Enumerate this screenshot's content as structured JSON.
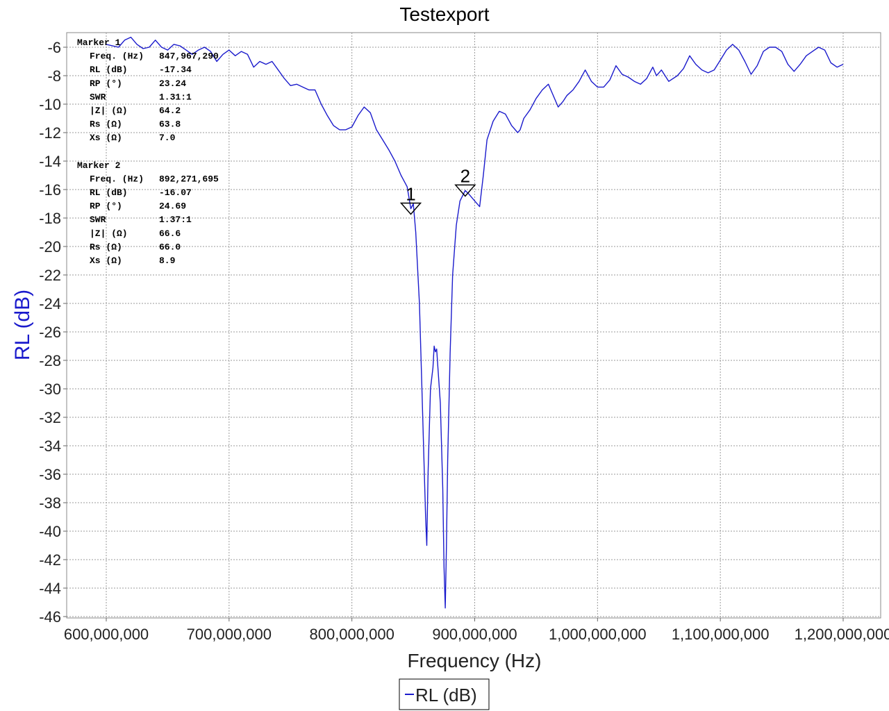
{
  "chart_data": {
    "type": "line",
    "title": "Testexport",
    "xlabel": "Frequency (Hz)",
    "ylabel": "RL (dB)",
    "xlim": [
      570000000,
      1230000000
    ],
    "ylim": [
      -46,
      -5
    ],
    "grid": true,
    "x_ticks": [
      600000000,
      700000000,
      800000000,
      900000000,
      1000000000,
      1100000000,
      1200000000
    ],
    "x_tick_labels": [
      "600,000,000",
      "700,000,000",
      "800,000,000",
      "900,000,000",
      "1,000,000,000",
      "1,100,000,000",
      "1,200,000,000"
    ],
    "y_ticks": [
      -6,
      -8,
      -10,
      -12,
      -14,
      -16,
      -18,
      -20,
      -22,
      -24,
      -26,
      -28,
      -30,
      -32,
      -34,
      -36,
      -38,
      -40,
      -42,
      -44,
      -46
    ],
    "y_tick_labels": [
      "-6",
      "-8",
      "-10",
      "-12",
      "-14",
      "-16",
      "-18",
      "-20",
      "-22",
      "-24",
      "-26",
      "-28",
      "-30",
      "-32",
      "-34",
      "-36",
      "-38",
      "-40",
      "-42",
      "-44",
      "-46"
    ],
    "legend": {
      "position": "bottom-center",
      "entries": [
        "RL (dB)"
      ]
    },
    "series": [
      {
        "name": "RL (dB)",
        "color": "#1a1acc",
        "x": [
          600000000,
          610000000,
          615000000,
          620000000,
          625000000,
          630000000,
          635000000,
          640000000,
          645000000,
          650000000,
          655000000,
          660000000,
          665000000,
          670000000,
          675000000,
          680000000,
          685000000,
          690000000,
          695000000,
          700000000,
          705000000,
          710000000,
          715000000,
          720000000,
          725000000,
          730000000,
          735000000,
          740000000,
          745000000,
          750000000,
          755000000,
          760000000,
          765000000,
          770000000,
          775000000,
          780000000,
          785000000,
          790000000,
          795000000,
          800000000,
          805000000,
          810000000,
          815000000,
          820000000,
          825000000,
          830000000,
          835000000,
          840000000,
          845000000,
          847967290,
          850000000,
          852000000,
          855000000,
          857000000,
          859000000,
          860000000,
          861000000,
          862000000,
          864000000,
          866000000,
          867000000,
          868000000,
          869000000,
          870000000,
          872000000,
          874000000,
          875000000,
          876000000,
          877000000,
          878000000,
          880000000,
          882000000,
          885000000,
          888000000,
          892271695,
          895000000,
          900000000,
          904000000,
          907000000,
          910000000,
          915000000,
          920000000,
          925000000,
          930000000,
          935000000,
          937000000,
          940000000,
          945000000,
          950000000,
          955000000,
          960000000,
          963000000,
          968000000,
          972000000,
          975000000,
          980000000,
          985000000,
          990000000,
          995000000,
          1000000000,
          1005000000,
          1010000000,
          1015000000,
          1020000000,
          1025000000,
          1030000000,
          1035000000,
          1040000000,
          1045000000,
          1048000000,
          1052000000,
          1058000000,
          1065000000,
          1070000000,
          1075000000,
          1080000000,
          1085000000,
          1090000000,
          1095000000,
          1100000000,
          1105000000,
          1110000000,
          1115000000,
          1120000000,
          1125000000,
          1130000000,
          1135000000,
          1140000000,
          1145000000,
          1150000000,
          1155000000,
          1160000000,
          1165000000,
          1170000000,
          1175000000,
          1180000000,
          1185000000,
          1190000000,
          1195000000,
          1200000000
        ],
        "y": [
          -5.8,
          -6.0,
          -5.5,
          -5.3,
          -5.8,
          -6.1,
          -6.0,
          -5.5,
          -6.0,
          -6.2,
          -5.8,
          -5.9,
          -6.2,
          -6.5,
          -6.2,
          -6.0,
          -6.3,
          -7.0,
          -6.5,
          -6.2,
          -6.6,
          -6.3,
          -6.5,
          -7.4,
          -7.0,
          -7.2,
          -7.0,
          -7.6,
          -8.2,
          -8.7,
          -8.6,
          -8.8,
          -9.0,
          -9.0,
          -10.0,
          -10.8,
          -11.5,
          -11.8,
          -11.8,
          -11.6,
          -10.8,
          -10.2,
          -10.6,
          -11.8,
          -12.5,
          -13.2,
          -14.0,
          -15.0,
          -15.8,
          -17.34,
          -17.0,
          -19.0,
          -24.0,
          -30.0,
          -36.0,
          -39.0,
          -41.0,
          -36.0,
          -30.0,
          -28.5,
          -27.0,
          -27.4,
          -27.2,
          -28.5,
          -31.0,
          -37.0,
          -42.5,
          -45.4,
          -41.0,
          -35.0,
          -27.5,
          -22.0,
          -18.5,
          -16.8,
          -16.07,
          -16.3,
          -16.8,
          -17.2,
          -15.0,
          -12.5,
          -11.2,
          -10.5,
          -10.7,
          -11.5,
          -12.0,
          -11.8,
          -11.0,
          -10.4,
          -9.6,
          -9.0,
          -8.6,
          -9.2,
          -10.2,
          -9.8,
          -9.4,
          -9.0,
          -8.4,
          -7.6,
          -8.4,
          -8.8,
          -8.8,
          -8.3,
          -7.3,
          -7.9,
          -8.1,
          -8.4,
          -8.6,
          -8.2,
          -7.4,
          -8.0,
          -7.6,
          -8.4,
          -8.0,
          -7.5,
          -6.6,
          -7.2,
          -7.6,
          -7.8,
          -7.6,
          -6.9,
          -6.2,
          -5.8,
          -6.2,
          -7.0,
          -7.9,
          -7.3,
          -6.3,
          -6.0,
          -6.0,
          -6.3,
          -7.2,
          -7.7,
          -7.2,
          -6.6,
          -6.3,
          -6.0,
          -6.2,
          -7.1,
          -7.4,
          -7.2
        ]
      }
    ],
    "markers": [
      {
        "label": "1",
        "x": 847967290,
        "y": -17.34
      },
      {
        "label": "2",
        "x": 892271695,
        "y": -16.07
      }
    ]
  },
  "marker_panel": {
    "markers": [
      {
        "header": "Marker 1",
        "rows": [
          {
            "name": "Freq. (Hz)",
            "value": "847,967,290"
          },
          {
            "name": "RL (dB)",
            "value": "-17.34"
          },
          {
            "name": "RP (°)",
            "value": "23.24"
          },
          {
            "name": "SWR",
            "value": "1.31:1"
          },
          {
            "name": "|Z| (Ω)",
            "value": "64.2"
          },
          {
            "name": "Rs (Ω)",
            "value": "63.8"
          },
          {
            "name": "Xs (Ω)",
            "value": "7.0"
          }
        ]
      },
      {
        "header": "Marker 2",
        "rows": [
          {
            "name": "Freq. (Hz)",
            "value": "892,271,695"
          },
          {
            "name": "RL (dB)",
            "value": "-16.07"
          },
          {
            "name": "RP (°)",
            "value": "24.69"
          },
          {
            "name": "SWR",
            "value": "1.37:1"
          },
          {
            "name": "|Z| (Ω)",
            "value": "66.6"
          },
          {
            "name": "Rs (Ω)",
            "value": "66.0"
          },
          {
            "name": "Xs (Ω)",
            "value": "8.9"
          }
        ]
      }
    ]
  }
}
